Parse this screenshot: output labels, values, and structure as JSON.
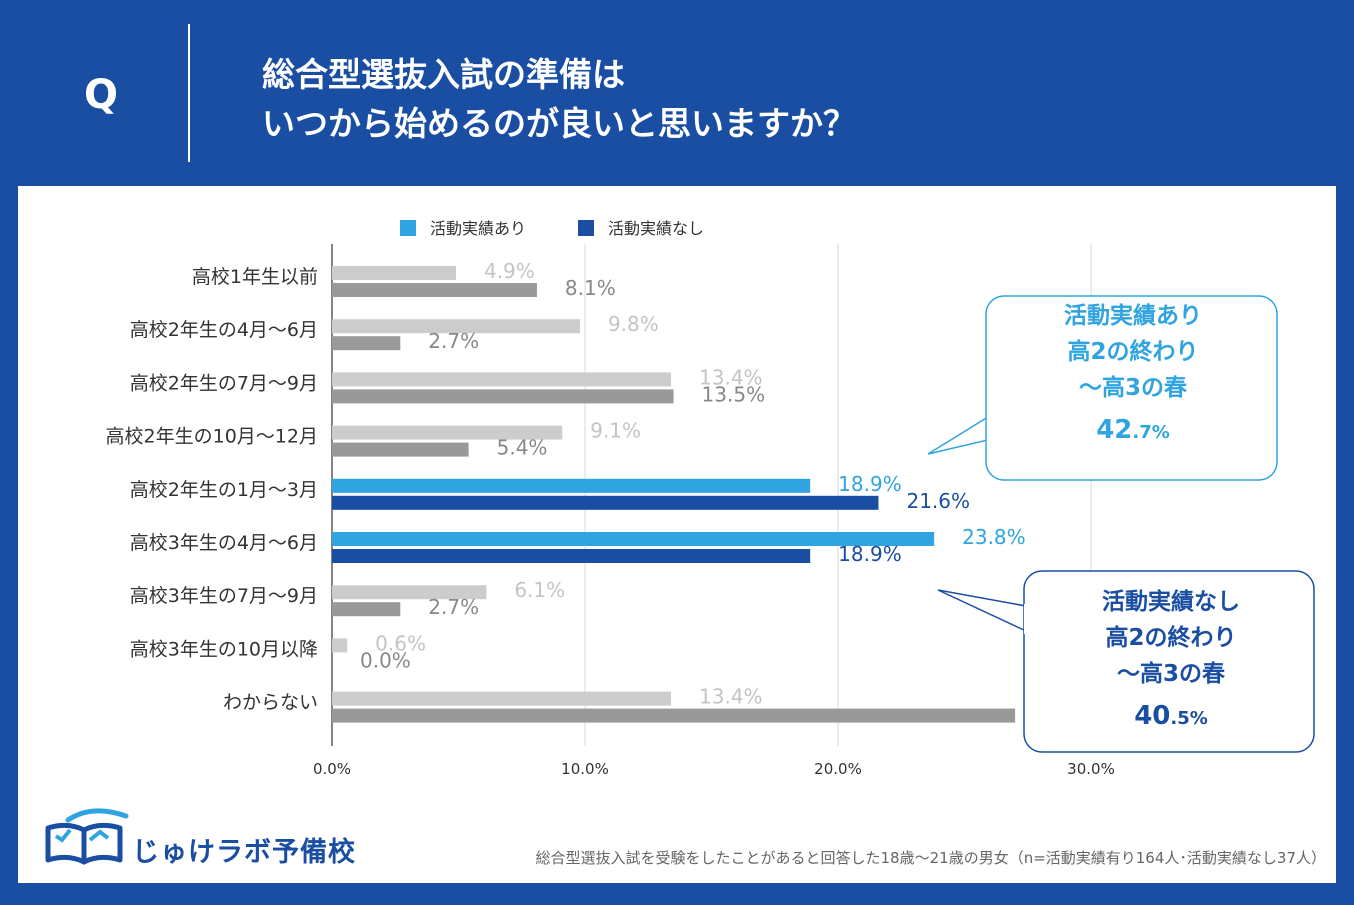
{
  "header": {
    "q_mark": "Q",
    "title_line1": "総合型選抜入試の準備は",
    "title_line2": "いつから始めるのが良いと思いますか？"
  },
  "chart_data": {
    "type": "bar",
    "orientation": "horizontal",
    "categories": [
      "高校1年生以前",
      "高校2年生の4月～6月",
      "高校2年生の7月～9月",
      "高校2年生の10月～12月",
      "高校2年生の1月～3月",
      "高校3年生の4月～6月",
      "高校3年生の7月～9月",
      "高校3年生の10月以降",
      "わからない"
    ],
    "series": [
      {
        "name": "活動実績あり",
        "values": [
          4.9,
          9.8,
          13.4,
          9.1,
          18.9,
          23.8,
          6.1,
          0.6,
          13.4
        ],
        "labels": [
          "4.9%",
          "9.8%",
          "13.4%",
          "9.1%",
          "18.9%",
          "23.8%",
          "6.1%",
          "0.6%",
          "13.4%"
        ],
        "color": "#2fa4e0",
        "muted_color": "#cccccc",
        "muted_label_color": "#c4c4c4"
      },
      {
        "name": "活動実績なし",
        "values": [
          8.1,
          2.7,
          13.5,
          5.4,
          21.6,
          18.9,
          2.7,
          0.0,
          27.0
        ],
        "labels": [
          "8.1%",
          "2.7%",
          "13.5%",
          "5.4%",
          "21.6%",
          "18.9%",
          "2.7%",
          "0.0%",
          ""
        ],
        "color": "#1a4ea3",
        "muted_color": "#999999",
        "muted_label_color": "#888888"
      }
    ],
    "highlight_categories": [
      4,
      5
    ],
    "xlim": [
      0,
      30
    ],
    "xticks": [
      "0.0%",
      "10.0%",
      "20.0%",
      "30.0%"
    ],
    "grid": true,
    "legend_position": "top"
  },
  "callouts": {
    "with": {
      "line1": "活動実績あり",
      "line2": "高2の終わり",
      "line3": "～高3の春",
      "pct_int": "42",
      "pct_dec": ".7%"
    },
    "without": {
      "line1": "活動実績なし",
      "line2": "高2の終わり",
      "line3": "～高3の春",
      "pct_int": "40",
      "pct_dec": ".5%"
    }
  },
  "footer": {
    "logo_text": "じゅけラボ予備校",
    "footnote": "総合型選抜入試を受験をしたことがあると回答した18歳～21歳の男女（n=活動実績有り164人･活動実績なし37人）"
  },
  "colors": {
    "accent": "#1a4ea3",
    "light_accent": "#2fa4e0"
  }
}
